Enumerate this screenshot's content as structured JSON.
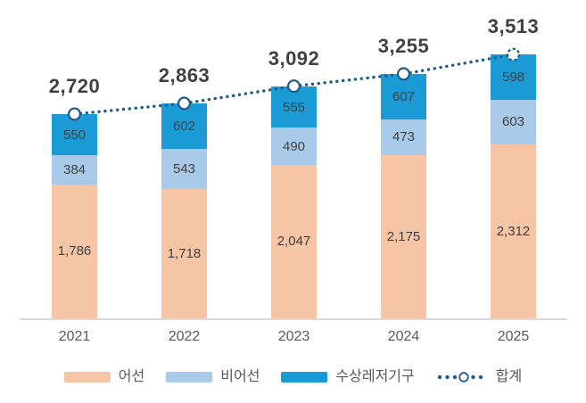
{
  "chart_data": {
    "type": "bar",
    "variant": "stacked-column-with-total-line",
    "title": "",
    "xlabel": "",
    "ylabel": "",
    "categories": [
      "2021",
      "2022",
      "2023",
      "2024",
      "2025"
    ],
    "series": [
      {
        "name": "어선",
        "color": "#F5C5A6",
        "values": [
          1786,
          1718,
          2047,
          2175,
          2312
        ],
        "labels": [
          "1,786",
          "1,718",
          "2,047",
          "2,175",
          "2,312"
        ]
      },
      {
        "name": "비어선",
        "color": "#A9CBE9",
        "values": [
          384,
          543,
          490,
          473,
          603
        ],
        "labels": [
          "384",
          "543",
          "490",
          "473",
          "603"
        ]
      },
      {
        "name": "수상레저기구",
        "color": "#1B9BD6",
        "values": [
          550,
          602,
          555,
          607,
          598
        ],
        "labels": [
          "550",
          "602",
          "555",
          "607",
          "598"
        ]
      }
    ],
    "total_line": {
      "name": "합계",
      "color": "#1F5C8B",
      "style": "dotted",
      "marker": "open-circle",
      "last_marker": "dashed-open-circle",
      "values": [
        2720,
        2863,
        3092,
        3255,
        3513
      ],
      "labels": [
        "2,720",
        "2,863",
        "3,092",
        "3,255",
        "3,513"
      ]
    },
    "legend_position": "bottom",
    "grid": false,
    "ylim": [
      0,
      3600
    ],
    "colors": {
      "background": "#FFFFFF",
      "axis_line": "#D9D9D9",
      "value_label": "#404040",
      "total_label": "#404040",
      "tick_label": "#595959",
      "legend_label": "#595959"
    }
  }
}
